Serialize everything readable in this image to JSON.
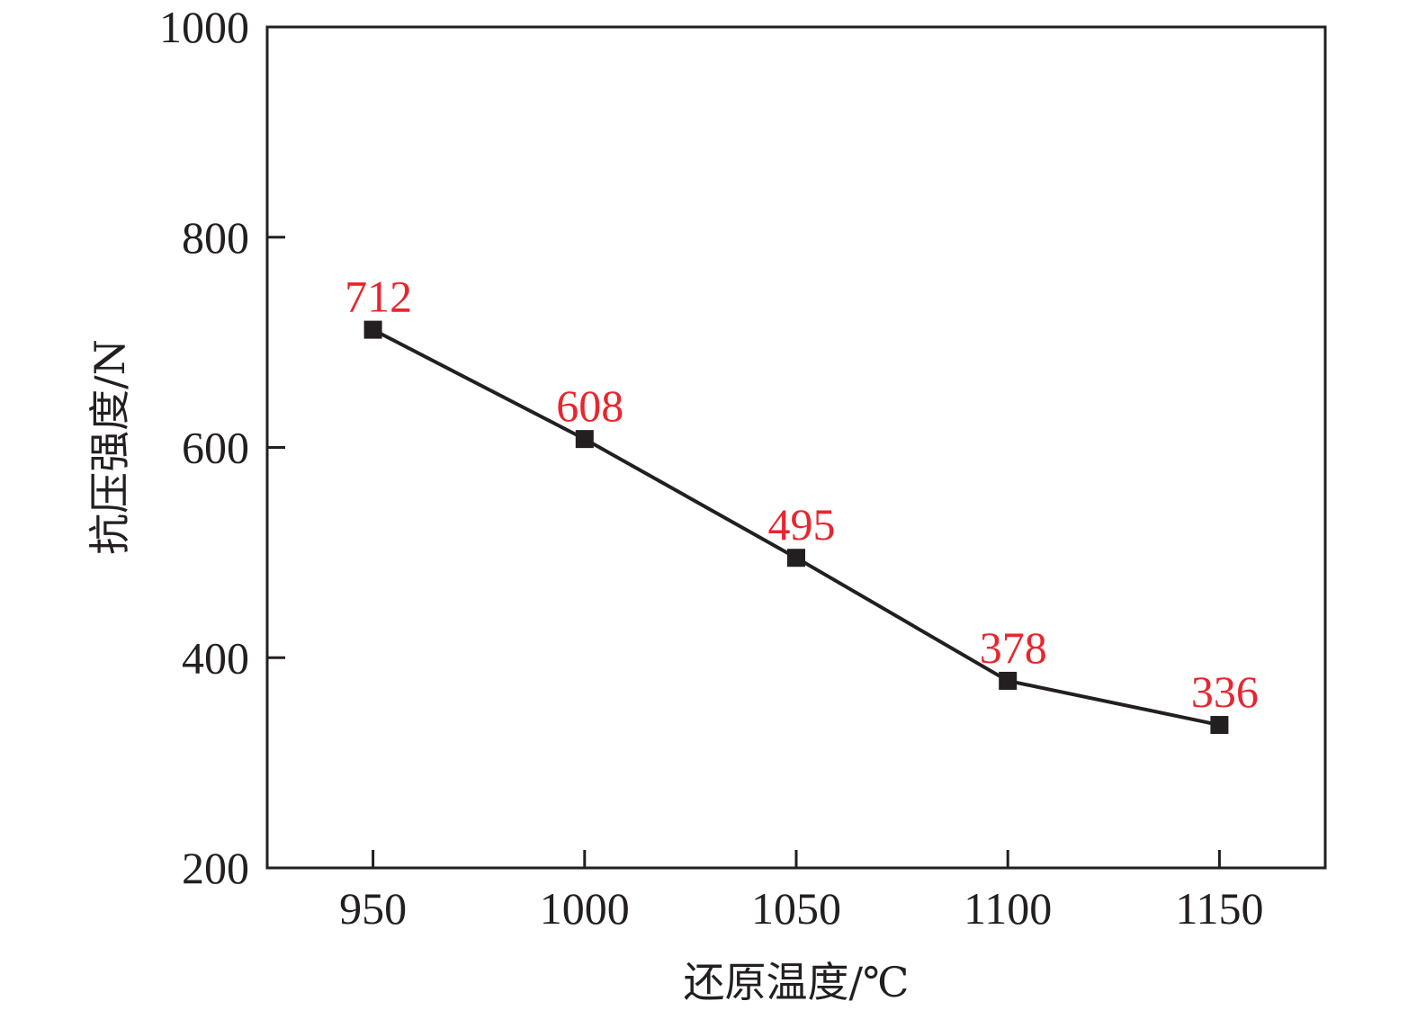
{
  "chart_data": {
    "type": "line",
    "title": "",
    "xlabel": "还原温度/℃",
    "ylabel": "抗压强度/N",
    "x": [
      950,
      1000,
      1050,
      1100,
      1150
    ],
    "series": [
      {
        "values": [
          712,
          608,
          495,
          378,
          336
        ],
        "labels": [
          "712",
          "608",
          "495",
          "378",
          "336"
        ]
      }
    ],
    "xlim": [
      925,
      1175
    ],
    "ylim": [
      200,
      1000
    ],
    "xticks": [
      "950",
      "1000",
      "1050",
      "1100",
      "1150"
    ],
    "yticks": [
      "200",
      "400",
      "600",
      "800",
      "1000"
    ],
    "grid": false,
    "marker": "square",
    "line_color": "#231f20",
    "label_color": "#e8262e"
  }
}
